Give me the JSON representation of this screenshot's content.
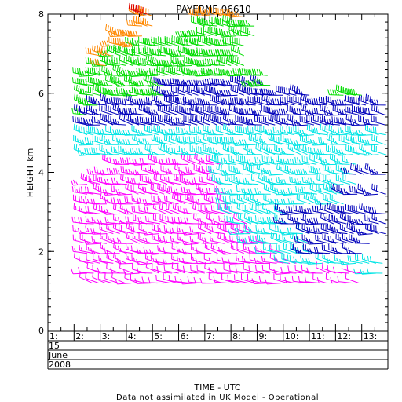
{
  "chart_data": {
    "type": "scatter",
    "title": "PAYERNE 06610",
    "ylabel": "HEIGHT km",
    "xlabel": "TIME - UTC",
    "footnote": "Data not assimilated in UK Model - Operational",
    "ylim": [
      0,
      8
    ],
    "y_ticks": [
      0,
      2,
      4,
      6,
      8
    ],
    "xlim": [
      1,
      14
    ],
    "x_ticks": [
      "1:",
      "2:",
      "3:",
      "4:",
      "5:",
      "6:",
      "7:",
      "8:",
      "9:",
      "10:",
      "11:",
      "12:",
      "13:"
    ],
    "date_rows": [
      "15",
      "June",
      "2008"
    ],
    "series": [
      {
        "color": "#ff00ff",
        "rows": [
          {
            "y": 1.2,
            "x_start": 2.7,
            "x_end": 12.9,
            "u": 12,
            "v": 4
          },
          {
            "y": 1.45,
            "x_start": 2.5,
            "x_end": 13.0,
            "u": 12,
            "v": 4
          },
          {
            "y": 1.7,
            "x_start": 2.5,
            "x_end": 10.5,
            "u": 14,
            "v": 5
          },
          {
            "y": 1.95,
            "x_start": 2.5,
            "x_end": 10.0,
            "u": 16,
            "v": 6
          },
          {
            "y": 2.2,
            "x_start": 2.5,
            "x_end": 9.5,
            "u": 18,
            "v": 6
          },
          {
            "y": 2.45,
            "x_start": 2.5,
            "x_end": 9.0,
            "u": 18,
            "v": 8
          },
          {
            "y": 2.7,
            "x_start": 2.5,
            "x_end": 8.6,
            "u": 20,
            "v": 8
          },
          {
            "y": 2.95,
            "x_start": 2.5,
            "x_end": 8.3,
            "u": 20,
            "v": 8
          },
          {
            "y": 3.2,
            "x_start": 2.5,
            "x_end": 8.0,
            "u": 20,
            "v": 9
          },
          {
            "y": 3.45,
            "x_start": 2.5,
            "x_end": 7.9,
            "u": 22,
            "v": 9
          },
          {
            "y": 3.7,
            "x_start": 2.5,
            "x_end": 7.6,
            "u": 22,
            "v": 9
          },
          {
            "y": 3.95,
            "x_start": 3.1,
            "x_end": 7.6,
            "u": 24,
            "v": 9
          },
          {
            "y": 4.2,
            "x_start": 3.6,
            "x_end": 7.6,
            "u": 24,
            "v": 9
          }
        ]
      },
      {
        "color": "#00e5e5",
        "rows": [
          {
            "y": 1.45,
            "x_start": 13.3,
            "x_end": 13.8,
            "u": 16,
            "v": 6
          },
          {
            "y": 1.7,
            "x_start": 10.2,
            "x_end": 13.8,
            "u": 18,
            "v": 8
          },
          {
            "y": 1.95,
            "x_start": 9.5,
            "x_end": 11.3,
            "u": 20,
            "v": 8
          },
          {
            "y": 2.2,
            "x_start": 8.8,
            "x_end": 11.0,
            "u": 20,
            "v": 8
          },
          {
            "y": 2.45,
            "x_start": 8.5,
            "x_end": 11.0,
            "u": 20,
            "v": 8
          },
          {
            "y": 2.7,
            "x_start": 8.3,
            "x_end": 10.2,
            "u": 22,
            "v": 9
          },
          {
            "y": 2.95,
            "x_start": 8.0,
            "x_end": 10.2,
            "u": 22,
            "v": 9
          },
          {
            "y": 3.2,
            "x_start": 8.0,
            "x_end": 12.3,
            "u": 24,
            "v": 9
          },
          {
            "y": 3.45,
            "x_start": 8.0,
            "x_end": 12.3,
            "u": 24,
            "v": 10
          },
          {
            "y": 3.7,
            "x_start": 7.8,
            "x_end": 12.8,
            "u": 24,
            "v": 10
          },
          {
            "y": 3.95,
            "x_start": 7.7,
            "x_end": 12.8,
            "u": 26,
            "v": 10
          },
          {
            "y": 4.2,
            "x_start": 7.7,
            "x_end": 12.8,
            "u": 26,
            "v": 10
          },
          {
            "y": 4.45,
            "x_start": 2.5,
            "x_end": 13.9,
            "u": 28,
            "v": 10
          },
          {
            "y": 4.7,
            "x_start": 2.5,
            "x_end": 13.9,
            "u": 30,
            "v": 10
          },
          {
            "y": 4.95,
            "x_start": 2.5,
            "x_end": 13.9,
            "u": 30,
            "v": 10
          }
        ]
      },
      {
        "color": "#0000bb",
        "rows": [
          {
            "y": 1.95,
            "x_start": 10.8,
            "x_end": 13.0,
            "u": 22,
            "v": 10
          },
          {
            "y": 2.2,
            "x_start": 11.0,
            "x_end": 13.3,
            "u": 24,
            "v": 10
          },
          {
            "y": 2.45,
            "x_start": 11.0,
            "x_end": 13.9,
            "u": 26,
            "v": 11
          },
          {
            "y": 2.7,
            "x_start": 10.2,
            "x_end": 13.9,
            "u": 28,
            "v": 11
          },
          {
            "y": 2.95,
            "x_start": 10.2,
            "x_end": 13.9,
            "u": 30,
            "v": 12
          },
          {
            "y": 3.45,
            "x_start": 12.3,
            "x_end": 13.9,
            "u": 30,
            "v": 12
          },
          {
            "y": 3.95,
            "x_start": 12.8,
            "x_end": 13.9,
            "u": 32,
            "v": 12
          },
          {
            "y": 5.2,
            "x_start": 2.5,
            "x_end": 13.9,
            "u": 34,
            "v": 12
          },
          {
            "y": 5.45,
            "x_start": 2.5,
            "x_end": 13.9,
            "u": 36,
            "v": 12
          },
          {
            "y": 5.7,
            "x_start": 3.0,
            "x_end": 13.9,
            "u": 38,
            "v": 13
          },
          {
            "y": 5.95,
            "x_start": 5.5,
            "x_end": 11.0,
            "u": 38,
            "v": 13
          },
          {
            "y": 6.2,
            "x_start": 5.5,
            "x_end": 9.5,
            "u": 40,
            "v": 13
          }
        ]
      },
      {
        "color": "#00dd00",
        "rows": [
          {
            "y": 5.45,
            "x_start": 2.5,
            "x_end": 2.6,
            "u": 40,
            "v": 12
          },
          {
            "y": 5.7,
            "x_start": 2.5,
            "x_end": 2.9,
            "u": 40,
            "v": 12
          },
          {
            "y": 5.95,
            "x_start": 2.5,
            "x_end": 5.4,
            "u": 42,
            "v": 12
          },
          {
            "y": 6.2,
            "x_start": 2.5,
            "x_end": 5.4,
            "u": 42,
            "v": 13
          },
          {
            "y": 6.45,
            "x_start": 2.5,
            "x_end": 9.4,
            "u": 44,
            "v": 13
          },
          {
            "y": 6.7,
            "x_start": 3.0,
            "x_end": 8.5,
            "u": 44,
            "v": 13
          },
          {
            "y": 6.95,
            "x_start": 3.5,
            "x_end": 8.5,
            "u": 46,
            "v": 13
          },
          {
            "y": 7.2,
            "x_start": 4.5,
            "x_end": 8.5,
            "u": 46,
            "v": 14
          },
          {
            "y": 7.45,
            "x_start": 6.5,
            "x_end": 8.9,
            "u": 46,
            "v": 14
          },
          {
            "y": 7.7,
            "x_start": 7.0,
            "x_end": 8.9,
            "u": 48,
            "v": 14
          },
          {
            "y": 5.95,
            "x_start": 12.3,
            "x_end": 13.0,
            "u": 42,
            "v": 12
          },
          {
            "y": 6.2,
            "x_start": 9.0,
            "x_end": 9.5,
            "u": 42,
            "v": 12
          }
        ]
      },
      {
        "color": "#ff8800",
        "rows": [
          {
            "y": 6.7,
            "x_start": 3.2,
            "x_end": 3.3,
            "u": 46,
            "v": 14
          },
          {
            "y": 6.95,
            "x_start": 3.0,
            "x_end": 3.4,
            "u": 46,
            "v": 14
          },
          {
            "y": 7.2,
            "x_start": 3.6,
            "x_end": 4.4,
            "u": 48,
            "v": 14
          },
          {
            "y": 7.45,
            "x_start": 3.7,
            "x_end": 4.6,
            "u": 48,
            "v": 15
          },
          {
            "y": 7.95,
            "x_start": 4.6,
            "x_end": 5.0,
            "u": 50,
            "v": 15
          },
          {
            "y": 7.7,
            "x_start": 4.6,
            "x_end": 5.0,
            "u": 50,
            "v": 15
          },
          {
            "y": 7.95,
            "x_start": 6.9,
            "x_end": 8.5,
            "u": 50,
            "v": 15
          }
        ]
      },
      {
        "color": "#dd0000",
        "rows": [
          {
            "y": 8.0,
            "x_start": 4.6,
            "x_end": 4.8,
            "u": 50,
            "v": 15
          }
        ]
      }
    ]
  }
}
